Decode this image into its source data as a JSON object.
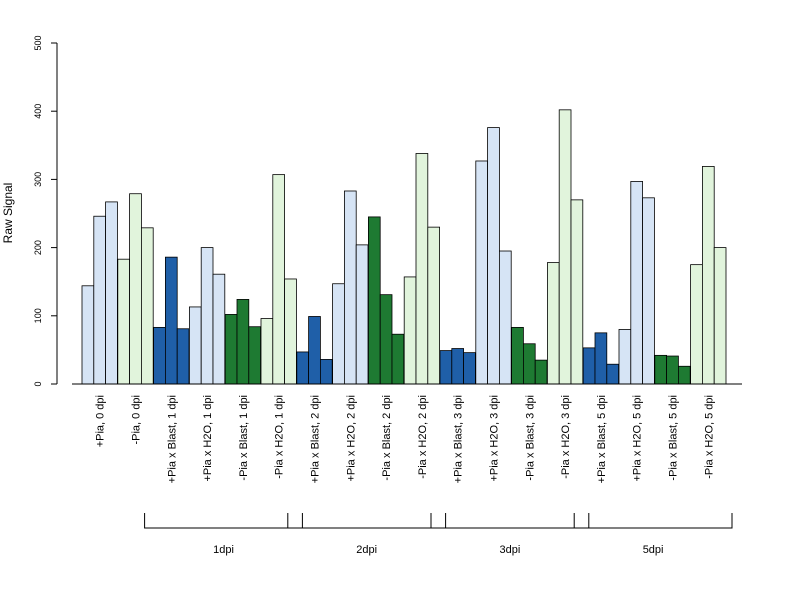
{
  "chart_data": {
    "type": "bar",
    "title": "",
    "xlabel": "",
    "ylabel": "Raw Signal",
    "ylim": [
      0,
      500
    ],
    "yticks": [
      0,
      100,
      200,
      300,
      400,
      500
    ],
    "grid": false,
    "legend": "none",
    "categories": [
      "+Pia, 0 dpi",
      "-Pia, 0 dpi",
      "+Pia x Blast, 1 dpi",
      "+Pia x H2O, 1 dpi",
      "-Pia x Blast, 1 dpi",
      "-Pia x H2O, 1 dpi",
      "+Pia x Blast, 2 dpi",
      "+Pia x H2O, 2 dpi",
      "-Pia x Blast, 2 dpi",
      "-Pia x H2O, 2 dpi",
      "+Pia x Blast, 3 dpi",
      "+Pia x H2O, 3 dpi",
      "-Pia x Blast, 3 dpi",
      "-Pia x H2O, 3 dpi",
      "+Pia x Blast, 5 dpi",
      "+Pia x H2O, 5 dpi",
      "-Pia x Blast, 5 dpi",
      "-Pia x H2O, 5 dpi"
    ],
    "category_colors": [
      "#d6e4f5",
      "#e1f4dc",
      "#1f5fa8",
      "#d6e4f5",
      "#1e7a32",
      "#e1f4dc",
      "#1f5fa8",
      "#d6e4f5",
      "#1e7a32",
      "#e1f4dc",
      "#1f5fa8",
      "#d6e4f5",
      "#1e7a32",
      "#e1f4dc",
      "#1f5fa8",
      "#d6e4f5",
      "#1e7a32",
      "#e1f4dc"
    ],
    "replicates": [
      [
        144,
        246,
        267
      ],
      [
        183,
        279,
        229
      ],
      [
        83,
        186,
        81
      ],
      [
        113,
        200,
        161
      ],
      [
        102,
        124,
        84
      ],
      [
        96,
        307,
        154
      ],
      [
        47,
        99,
        36
      ],
      [
        147,
        283,
        204
      ],
      [
        245,
        131,
        73
      ],
      [
        157,
        338,
        230
      ],
      [
        49,
        52,
        46
      ],
      [
        327,
        376,
        195
      ],
      [
        83,
        59,
        35
      ],
      [
        178,
        402,
        270
      ],
      [
        53,
        75,
        29
      ],
      [
        80,
        297,
        273
      ],
      [
        42,
        41,
        26
      ],
      [
        175,
        319,
        200
      ]
    ],
    "groups": [
      {
        "label": "1dpi",
        "from": 2,
        "to": 5
      },
      {
        "label": "2dpi",
        "from": 6,
        "to": 9
      },
      {
        "label": "3dpi",
        "from": 10,
        "to": 13
      },
      {
        "label": "5dpi",
        "from": 14,
        "to": 17
      }
    ]
  }
}
